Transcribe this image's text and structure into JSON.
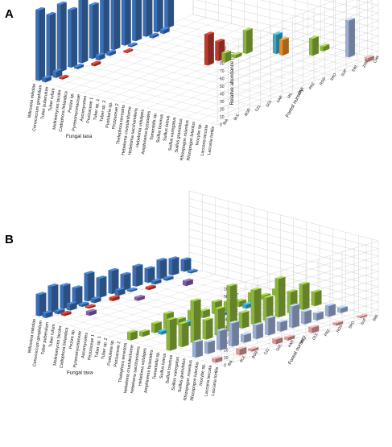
{
  "colors": {
    "blue": "#3a6fb5",
    "red": "#c0392b",
    "green": "#8cb43a",
    "cyan": "#3ba7c5",
    "orange": "#e98b2a",
    "purple": "#7b5ea7",
    "lavender": "#9aaed4",
    "pink": "#d99a9a",
    "yellow": "#d9c24a"
  },
  "chart_data": [
    {
      "panel_label": "A",
      "type": "bar",
      "zlabel": "Relative abundance (%)",
      "xlabel": "Fungal taxa",
      "ylabel": "Forest nursery",
      "zlim": [
        0,
        100
      ],
      "z_ticks": [
        "0",
        "10",
        "20",
        "30",
        "40",
        "50",
        "60",
        "70",
        "80",
        "90",
        "100"
      ],
      "taxa": [
        "Wilcoxina mikolae",
        "Cenococcum geophilum",
        "Tuber puberulum",
        "Tuber rufum",
        "Meliniomyces bicolor",
        "Cadophora finlandica",
        "Peziza sp.",
        "Pyrenomycetaceae",
        "Ascomycetes",
        "Pezizaceae 1",
        "Tuber sp. 1",
        "Tuber sp. 2",
        "Pustularia sp.",
        "Pezizaceae 2",
        "Thelephora terrestris",
        "Hebeloma crustuliniforme",
        "Hebeloma sacchariolens",
        "Hebeloma velutipes",
        "Amphinema byssoides",
        "Tomentella sp.",
        "Suillus bovinus",
        "Suillus luteus",
        "Suillus variegatus",
        "Suillus granulatus",
        "Rhizopogon roseolus",
        "Rhizopogon luteolus",
        "Inocybe sp.",
        "Laccaria laccata",
        "Laccaria tortilis"
      ],
      "nurseries": [
        "BIA",
        "BLE",
        "BOR",
        "CZ1",
        "GOL",
        "KAR",
        "MIL",
        "OLE",
        "PRZ",
        "ROG",
        "SRO",
        "SUP",
        "SWI",
        "ZAW",
        "CHR"
      ],
      "series": [
        {
          "taxon": "Wilcoxina mikolae",
          "color": "blue",
          "values": [
            92,
            80,
            88,
            75,
            95,
            70,
            85,
            90,
            78,
            82,
            86,
            74,
            88,
            0,
            0
          ]
        },
        {
          "taxon": "Cenococcum geophilum",
          "color": "blue",
          "values": [
            5,
            8,
            0,
            3,
            0,
            6,
            4,
            0,
            2,
            0,
            3,
            5,
            0,
            0,
            0
          ]
        },
        {
          "taxon": "Tuber puberulum",
          "color": "red",
          "values": [
            0,
            2,
            0,
            0,
            3,
            0,
            0,
            2,
            0,
            0,
            0,
            0,
            0,
            0,
            0
          ]
        },
        {
          "taxon": "Pezizaceae 2",
          "color": "red",
          "values": [
            0,
            0,
            0,
            0,
            0,
            0,
            0,
            0,
            40,
            25,
            0,
            0,
            0,
            0,
            0
          ]
        },
        {
          "taxon": "Thelephora terrestris",
          "color": "green",
          "values": [
            0,
            0,
            0,
            0,
            0,
            0,
            0,
            0,
            0,
            12,
            4,
            30,
            0,
            0,
            0
          ]
        },
        {
          "taxon": "Hebeloma velutipes",
          "color": "cyan",
          "values": [
            0,
            0,
            0,
            0,
            0,
            0,
            0,
            0,
            0,
            0,
            0,
            0,
            25,
            0,
            0
          ]
        },
        {
          "taxon": "Amphinema byssoides",
          "color": "orange",
          "values": [
            0,
            0,
            0,
            0,
            0,
            0,
            0,
            0,
            0,
            0,
            0,
            0,
            20,
            0,
            0
          ]
        },
        {
          "taxon": "Suillus luteus",
          "color": "green",
          "values": [
            0,
            0,
            0,
            0,
            0,
            0,
            0,
            0,
            0,
            0,
            0,
            0,
            0,
            22,
            6
          ]
        },
        {
          "taxon": "Rhizopogon luteolus",
          "color": "lavender",
          "values": [
            0,
            0,
            0,
            0,
            0,
            0,
            0,
            0,
            0,
            0,
            0,
            0,
            0,
            0,
            48
          ]
        },
        {
          "taxon": "Laccaria tortilis",
          "color": "pink",
          "values": [
            0,
            0,
            0,
            0,
            0,
            0,
            0,
            0,
            0,
            0,
            0,
            0,
            0,
            0,
            5
          ]
        }
      ]
    },
    {
      "panel_label": "B",
      "type": "bar",
      "zlabel": "Relative abundance (%)",
      "xlabel": "Fungal taxa",
      "ylabel": "Forest nursery",
      "zlim": [
        0,
        100
      ],
      "z_ticks": [
        "0",
        "10",
        "20",
        "30",
        "40",
        "50",
        "60",
        "70",
        "80",
        "90",
        "100"
      ],
      "taxa": [
        "Wilcoxina mikolae",
        "Cenococcum geophilum",
        "Tuber puberulum",
        "Tuber rufum",
        "Meliniomyces bicolor",
        "Cadophora finlandica",
        "Peziza sp.",
        "Pyrenomycetaceae",
        "Ascomycetes",
        "Pezizaceae 1",
        "Tuber sp. 1",
        "Tuber sp. 2",
        "Pustularia sp.",
        "Pezizaceae 2",
        "Thelephora terrestris",
        "Hebeloma crustuliniforme",
        "Hebeloma sacchariolens",
        "Hebeloma velutipes",
        "Amphinema byssoides",
        "Tomentella sp.",
        "Suillus luteus",
        "Suillus bovinus",
        "Suillus variegatus",
        "Suillus granulatus",
        "Rhizopogon roseolus",
        "Rhizopogon luteolus",
        "Inocybe sp.",
        "Laccaria laccata",
        "Laccaria tortilis"
      ],
      "nurseries": [
        "BIA",
        "BLE",
        "BOR",
        "CZ1",
        "GOL",
        "KAR",
        "MIL",
        "OLE",
        "PRZ",
        "ROG",
        "SRO",
        "SUP",
        "SWI"
      ],
      "series": [
        {
          "taxon": "Wilcoxina mikolae",
          "color": "blue",
          "values": [
            28,
            34,
            30,
            22,
            36,
            25,
            30,
            20,
            26,
            18,
            24,
            21,
            15
          ]
        },
        {
          "taxon": "Cenococcum geophilum",
          "color": "blue",
          "values": [
            6,
            4,
            8,
            3,
            5,
            0,
            7,
            2,
            0,
            4,
            3,
            0,
            2
          ]
        },
        {
          "taxon": "Tuber puberulum",
          "color": "red",
          "values": [
            0,
            3,
            0,
            2,
            0,
            4,
            0,
            0,
            3,
            0,
            0,
            0,
            0
          ]
        },
        {
          "taxon": "Meliniomyces bicolor",
          "color": "purple",
          "values": [
            0,
            0,
            5,
            0,
            0,
            0,
            4,
            0,
            0,
            0,
            6,
            0,
            0
          ]
        },
        {
          "taxon": "Thelephora terrestris",
          "color": "green",
          "values": [
            10,
            6,
            12,
            20,
            8,
            14,
            9,
            16,
            11,
            7,
            13,
            5,
            8
          ]
        },
        {
          "taxon": "Hebeloma crustuliniforme",
          "color": "cyan",
          "values": [
            0,
            0,
            4,
            0,
            6,
            0,
            0,
            3,
            0,
            5,
            0,
            0,
            0
          ]
        },
        {
          "taxon": "Suillus luteus",
          "color": "green",
          "values": [
            40,
            30,
            55,
            25,
            35,
            60,
            20,
            45,
            30,
            50,
            28,
            33,
            18
          ]
        },
        {
          "taxon": "Rhizopogon roseolus",
          "color": "lavender",
          "values": [
            20,
            15,
            25,
            30,
            10,
            18,
            22,
            12,
            28,
            16,
            9,
            14,
            6
          ]
        },
        {
          "taxon": "Laccaria laccata",
          "color": "pink",
          "values": [
            5,
            0,
            8,
            3,
            0,
            6,
            4,
            0,
            7,
            0,
            3,
            0,
            2
          ]
        }
      ]
    }
  ]
}
